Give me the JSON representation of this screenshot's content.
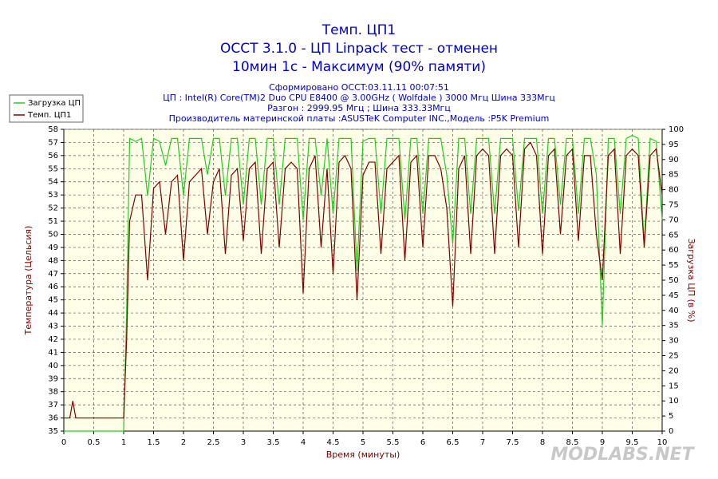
{
  "chart_data": {
    "type": "line",
    "title": "Темп. ЦП1",
    "subtitle": [
      "OCCT 3.1.0 - ЦП Linpack тест - отменен",
      "10мин 1с - Максимум (90% памяти)"
    ],
    "info": [
      "Сформировано OCCT:03.11.11 00:07:51",
      "ЦП : Intel(R) Core(TM)2 Duo CPU E8400 @ 3.00GHz ( Wolfdale ) 3000 Мгц Шина 333Мгц",
      "Разгон : 2999.95 Мгц ; Шина 333.33Мгц",
      "Производитель материнской платы :ASUSTeK Computer INC.,Модель :P5K Premium"
    ],
    "xlabel": "Время (минуты)",
    "ylabel": "Температура (Цельсия)",
    "y2label": "Загрузка ЦП (в %)",
    "watermark": "MODLABS.NET",
    "xlim": [
      0,
      10
    ],
    "ylim": [
      35,
      58
    ],
    "y2lim": [
      0,
      100
    ],
    "xticks": [
      0,
      0.5,
      1,
      1.5,
      2,
      2.5,
      3,
      3.5,
      4,
      4.5,
      5,
      5.5,
      6,
      6.5,
      7,
      7.5,
      8,
      8.5,
      9,
      9.5,
      10
    ],
    "yticks": [
      35,
      36,
      37,
      38,
      39,
      40,
      41,
      42,
      43,
      44,
      45,
      46,
      47,
      48,
      49,
      50,
      51,
      52,
      53,
      54,
      55,
      56,
      57,
      58
    ],
    "y2ticks": [
      0,
      5,
      10,
      15,
      20,
      25,
      30,
      35,
      40,
      45,
      50,
      55,
      60,
      65,
      70,
      75,
      80,
      85,
      90,
      95,
      100
    ],
    "grid": true,
    "legend": "top-left",
    "x": [
      0,
      0.1,
      0.15,
      0.2,
      0.3,
      0.4,
      0.5,
      0.6,
      0.7,
      0.8,
      0.9,
      1.0,
      1.05,
      1.1,
      1.2,
      1.3,
      1.4,
      1.5,
      1.6,
      1.7,
      1.8,
      1.9,
      2.0,
      2.1,
      2.2,
      2.3,
      2.4,
      2.5,
      2.6,
      2.7,
      2.8,
      2.9,
      3.0,
      3.1,
      3.2,
      3.3,
      3.4,
      3.5,
      3.6,
      3.7,
      3.8,
      3.9,
      4.0,
      4.1,
      4.2,
      4.3,
      4.4,
      4.5,
      4.6,
      4.7,
      4.8,
      4.9,
      5.0,
      5.1,
      5.2,
      5.3,
      5.4,
      5.5,
      5.6,
      5.7,
      5.8,
      5.9,
      6.0,
      6.1,
      6.2,
      6.3,
      6.4,
      6.5,
      6.6,
      6.7,
      6.8,
      6.9,
      7.0,
      7.1,
      7.2,
      7.3,
      7.4,
      7.5,
      7.6,
      7.7,
      7.8,
      7.9,
      8.0,
      8.1,
      8.2,
      8.3,
      8.4,
      8.5,
      8.6,
      8.7,
      8.8,
      8.9,
      9.0,
      9.1,
      9.2,
      9.3,
      9.4,
      9.5,
      9.6,
      9.7,
      9.8,
      9.9,
      10.0
    ],
    "series": [
      {
        "name": "Загрузка ЦП",
        "color": "#22cc22",
        "axis": "y2",
        "values": [
          0,
          0,
          0,
          0,
          0,
          0,
          0,
          0,
          0,
          0,
          0,
          0,
          40,
          97,
          96,
          97,
          78,
          97,
          96,
          88,
          97,
          97,
          78,
          97,
          97,
          97,
          85,
          97,
          97,
          78,
          97,
          97,
          75,
          97,
          97,
          75,
          97,
          97,
          75,
          97,
          97,
          97,
          70,
          97,
          97,
          78,
          97,
          72,
          97,
          97,
          97,
          53,
          96,
          97,
          97,
          72,
          97,
          97,
          97,
          70,
          97,
          97,
          72,
          97,
          97,
          97,
          85,
          62,
          97,
          97,
          72,
          97,
          97,
          97,
          72,
          97,
          97,
          97,
          73,
          97,
          97,
          97,
          72,
          97,
          97,
          75,
          97,
          97,
          72,
          97,
          97,
          85,
          35,
          97,
          97,
          72,
          97,
          98,
          97,
          62,
          97,
          96,
          70
        ]
      },
      {
        "name": "Темп. ЦП1",
        "color": "#800000",
        "values": [
          36,
          36,
          37.3,
          36,
          36,
          36,
          36,
          36,
          36,
          36,
          36,
          36,
          42,
          51,
          53,
          53,
          46.5,
          53.5,
          54,
          50,
          54,
          54.5,
          48,
          54,
          54.5,
          55,
          50,
          54,
          55,
          48.5,
          54.5,
          55,
          49.5,
          55,
          55.5,
          48.5,
          55,
          55.5,
          49,
          55,
          55.5,
          55,
          45.5,
          55,
          56,
          49,
          55,
          47,
          55.5,
          56,
          55,
          45,
          54.5,
          55.5,
          55.5,
          48.5,
          55,
          55.5,
          56,
          48,
          55.5,
          56,
          49,
          56,
          56,
          55,
          52,
          44.5,
          55,
          56,
          48.5,
          56,
          56.5,
          56,
          48.5,
          56,
          56.5,
          56,
          49,
          56.5,
          57,
          56,
          48.5,
          56,
          56.5,
          50,
          56,
          56.5,
          49.5,
          56,
          56,
          50,
          46.5,
          56,
          56.5,
          48.5,
          56,
          56.5,
          56,
          49,
          56,
          56.5,
          53
        ]
      }
    ]
  }
}
